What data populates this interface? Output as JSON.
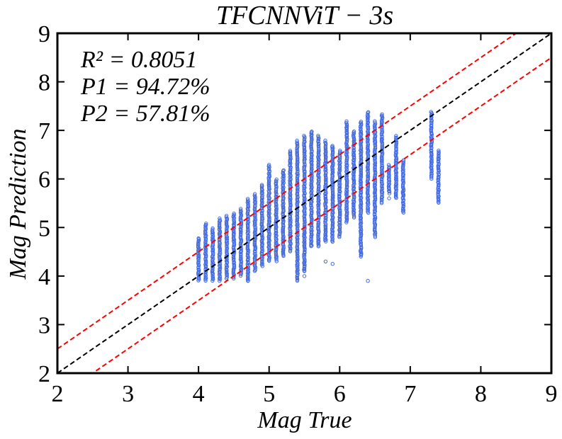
{
  "chart_data": {
    "type": "scatter",
    "title": "TFCNNViT − 3s",
    "xlabel": "Mag True",
    "ylabel": "Mag Prediction",
    "xlim": [
      2,
      9
    ],
    "ylim": [
      2,
      9
    ],
    "xticks": [
      "2",
      "3",
      "4",
      "5",
      "6",
      "7",
      "8",
      "9"
    ],
    "yticks": [
      "2",
      "3",
      "4",
      "5",
      "6",
      "7",
      "8",
      "9"
    ],
    "annotations": [
      "R² = 0.8051",
      "P1 = 94.72%",
      "P2 = 57.81%"
    ],
    "reference_lines": [
      {
        "slope": 1,
        "offset": 0,
        "color": "#000000",
        "style": "dashed"
      },
      {
        "slope": 1,
        "offset": 0.5,
        "color": "#ff0000",
        "style": "dashed"
      },
      {
        "slope": 1,
        "offset": -0.5,
        "color": "#ff0000",
        "style": "dashed"
      }
    ],
    "point_color": "#4169e1",
    "columns": [
      {
        "x": 4.0,
        "ymin": 3.9,
        "ymax": 4.8
      },
      {
        "x": 4.1,
        "ymin": 3.9,
        "ymax": 5.1
      },
      {
        "x": 4.2,
        "ymin": 3.9,
        "ymax": 5.0
      },
      {
        "x": 4.3,
        "ymin": 3.9,
        "ymax": 5.2
      },
      {
        "x": 4.4,
        "ymin": 3.95,
        "ymax": 5.25
      },
      {
        "x": 4.5,
        "ymin": 3.95,
        "ymax": 5.3
      },
      {
        "x": 4.6,
        "ymin": 4.0,
        "ymax": 5.4
      },
      {
        "x": 4.7,
        "ymin": 3.9,
        "ymax": 5.6
      },
      {
        "x": 4.8,
        "ymin": 4.1,
        "ymax": 5.7
      },
      {
        "x": 4.9,
        "ymin": 4.2,
        "ymax": 5.9
      },
      {
        "x": 5.0,
        "ymin": 4.3,
        "ymax": 6.3
      },
      {
        "x": 5.1,
        "ymin": 4.3,
        "ymax": 6.0
      },
      {
        "x": 5.2,
        "ymin": 4.4,
        "ymax": 6.2
      },
      {
        "x": 5.3,
        "ymin": 4.5,
        "ymax": 6.6
      },
      {
        "x": 5.4,
        "ymin": 3.9,
        "ymax": 6.8
      },
      {
        "x": 5.5,
        "ymin": 4.1,
        "ymax": 6.9
      },
      {
        "x": 5.6,
        "ymin": 4.6,
        "ymax": 7.0
      },
      {
        "x": 5.7,
        "ymin": 4.6,
        "ymax": 6.9
      },
      {
        "x": 5.8,
        "ymin": 4.7,
        "ymax": 6.8
      },
      {
        "x": 5.9,
        "ymin": 4.7,
        "ymax": 6.7
      },
      {
        "x": 6.0,
        "ymin": 4.8,
        "ymax": 6.6
      },
      {
        "x": 6.1,
        "ymin": 5.1,
        "ymax": 7.2
      },
      {
        "x": 6.2,
        "ymin": 5.2,
        "ymax": 7.0
      },
      {
        "x": 6.3,
        "ymin": 4.4,
        "ymax": 7.2
      },
      {
        "x": 6.4,
        "ymin": 5.3,
        "ymax": 7.4
      },
      {
        "x": 6.5,
        "ymin": 4.8,
        "ymax": 7.2
      },
      {
        "x": 6.6,
        "ymin": 5.5,
        "ymax": 7.35
      },
      {
        "x": 6.7,
        "ymin": 5.7,
        "ymax": 6.3
      },
      {
        "x": 6.8,
        "ymin": 5.6,
        "ymax": 6.9
      },
      {
        "x": 6.9,
        "ymin": 5.3,
        "ymax": 6.4
      },
      {
        "x": 7.3,
        "ymin": 6.0,
        "ymax": 7.4
      },
      {
        "x": 7.4,
        "ymin": 5.5,
        "ymax": 6.6
      }
    ],
    "outliers": [
      {
        "x": 5.5,
        "y": 4.1
      },
      {
        "x": 5.5,
        "y": 4.0
      },
      {
        "x": 5.5,
        "y": 4.2
      },
      {
        "x": 5.4,
        "y": 3.95
      },
      {
        "x": 5.8,
        "y": 4.3
      },
      {
        "x": 5.9,
        "y": 4.25
      },
      {
        "x": 6.4,
        "y": 3.9
      },
      {
        "x": 6.3,
        "y": 4.45
      },
      {
        "x": 4.7,
        "y": 3.9
      },
      {
        "x": 6.7,
        "y": 5.6
      },
      {
        "x": 6.9,
        "y": 5.7
      }
    ]
  }
}
